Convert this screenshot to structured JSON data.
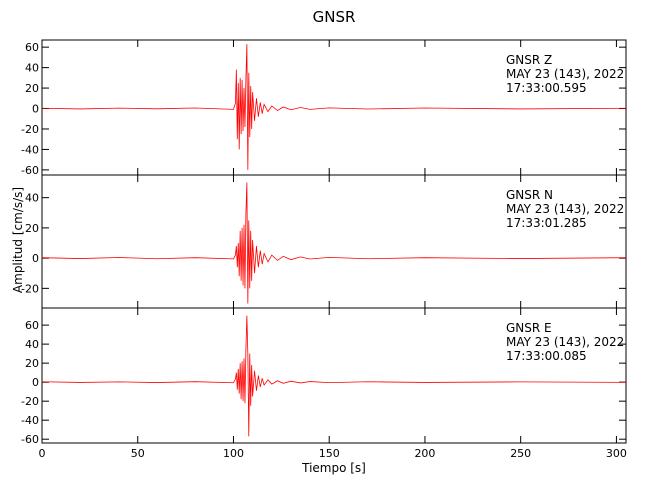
{
  "chart_data": {
    "type": "line",
    "title": "GNSR",
    "x_label": "Tiempo [s]",
    "y_label": "Amplitud [cm/s/s]",
    "xlim": [
      0,
      305
    ],
    "xticks": [
      0,
      50,
      100,
      150,
      200,
      250,
      300
    ],
    "x": [
      0,
      20,
      40,
      60,
      80,
      100,
      101,
      101.5,
      102,
      102.5,
      103,
      103.5,
      104,
      104.5,
      105,
      105.5,
      106,
      106.5,
      107,
      107.5,
      108,
      108.5,
      109,
      109.5,
      110,
      111,
      112,
      113,
      114,
      115,
      116,
      118,
      120,
      123,
      126,
      130,
      135,
      140,
      150,
      170,
      200,
      250,
      305
    ],
    "panels": [
      {
        "annotation": [
          "GNSR   Z",
          "MAY 23 (143), 2022",
          "17:33:00.595"
        ],
        "color": "#ff0000",
        "ylim": [
          -65,
          67
        ],
        "yticks": [
          -60,
          -40,
          -20,
          0,
          20,
          40,
          60
        ],
        "values": [
          0.3,
          -0.4,
          0.4,
          -0.3,
          0.5,
          -0.8,
          5,
          38,
          -30,
          25,
          -40,
          30,
          -25,
          28,
          -22,
          20,
          -18,
          30,
          63,
          -60,
          35,
          -28,
          22,
          -20,
          16,
          -12,
          10,
          -8,
          6,
          -5,
          4,
          -3,
          2.5,
          -2,
          1.5,
          -1.2,
          1,
          -0.8,
          0.6,
          -0.5,
          0.5,
          -0.4,
          0.3
        ]
      },
      {
        "annotation": [
          "GNSR   N",
          "MAY 23 (143), 2022",
          "17:33:01.285"
        ],
        "color": "#ff0000",
        "ylim": [
          -33,
          55
        ],
        "yticks": [
          -20,
          0,
          20,
          40
        ],
        "values": [
          0.3,
          -0.3,
          0.4,
          -0.4,
          0.3,
          -0.5,
          2,
          8,
          -6,
          10,
          -12,
          18,
          -15,
          20,
          -18,
          22,
          -20,
          30,
          50,
          -30,
          25,
          -20,
          18,
          -15,
          12,
          -10,
          8,
          -6,
          5,
          -4,
          3,
          -2.5,
          2,
          -1.5,
          1.2,
          -1,
          0.8,
          -0.6,
          0.5,
          -0.4,
          0.3,
          -0.3,
          0.3
        ]
      },
      {
        "annotation": [
          "GNSR   E",
          "MAY 23 (143), 2022",
          "17:33:00.085"
        ],
        "color": "#ff0000",
        "ylim": [
          -64,
          78
        ],
        "yticks": [
          -60,
          -40,
          -20,
          0,
          20,
          40,
          60
        ],
        "values": [
          0.4,
          -0.3,
          0.3,
          -0.4,
          0.5,
          -0.6,
          3,
          10,
          -8,
          14,
          -12,
          20,
          -18,
          22,
          -20,
          25,
          -22,
          35,
          70,
          30,
          -57,
          30,
          -25,
          18,
          -15,
          12,
          -9,
          7,
          -5,
          4,
          -3,
          2.5,
          -2,
          1.5,
          -1.2,
          1,
          -0.8,
          0.6,
          -0.5,
          0.4,
          -0.3,
          0.3,
          -0.2
        ]
      }
    ]
  }
}
